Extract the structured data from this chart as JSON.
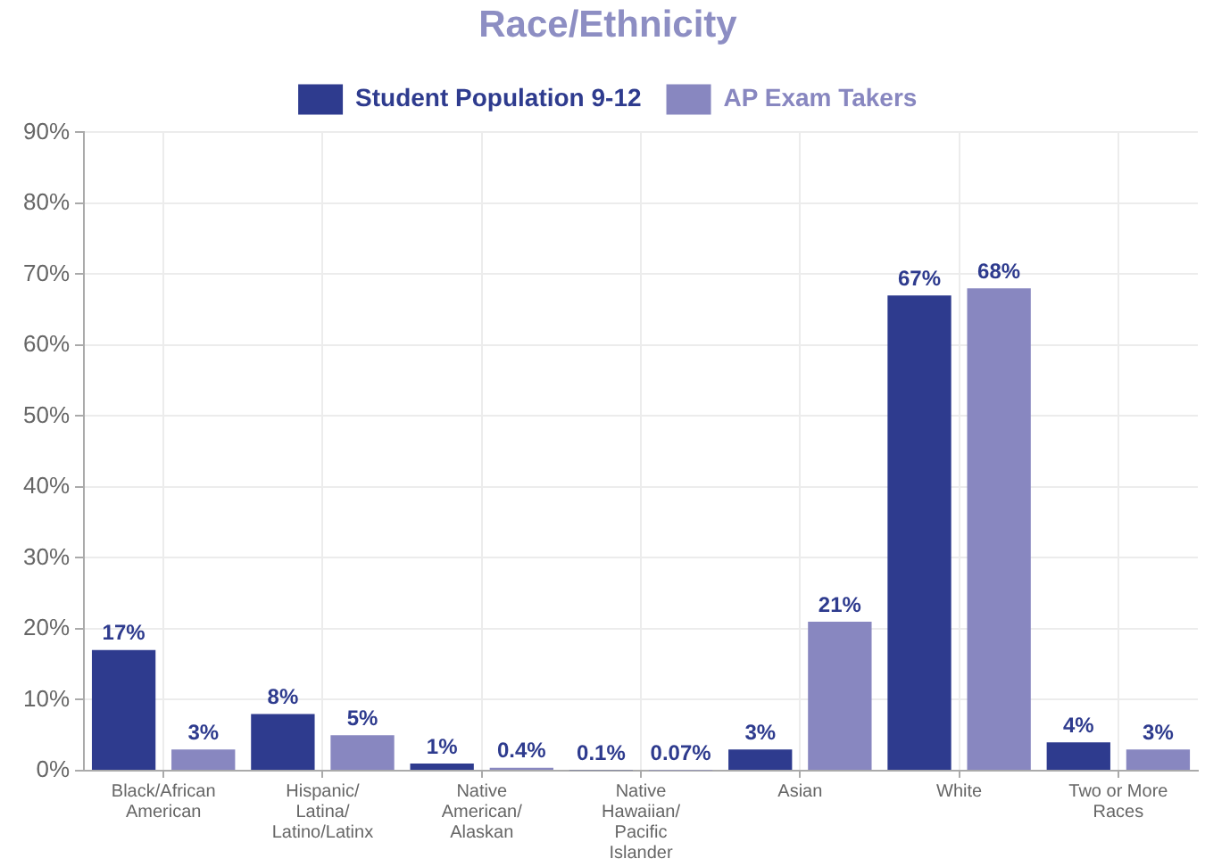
{
  "chart_data": {
    "type": "bar",
    "title": "Race/Ethnicity",
    "categories": [
      "Black/African American",
      "Hispanic/ Latina/ Latino/Latinx",
      "Native American/ Alaskan",
      "Native Hawaiian/ Pacific Islander",
      "Asian",
      "White",
      "Two or More Races"
    ],
    "series": [
      {
        "name": "Student Population 9-12",
        "color": "#2e3b8e",
        "values": [
          17,
          8,
          1,
          0.1,
          3,
          67,
          4
        ],
        "value_labels": [
          "17%",
          "8%",
          "1%",
          "0.1%",
          "3%",
          "67%",
          "4%"
        ]
      },
      {
        "name": "AP Exam Takers",
        "color": "#8887c0",
        "values": [
          3,
          5,
          0.4,
          0.07,
          21,
          68,
          3
        ],
        "value_labels": [
          "3%",
          "5%",
          "0.4%",
          "0.07%",
          "21%",
          "68%",
          "3%"
        ]
      }
    ],
    "ylim": [
      0,
      90
    ],
    "yticks": [
      {
        "value": 0,
        "label": "0%"
      },
      {
        "value": 10,
        "label": "10%"
      },
      {
        "value": 20,
        "label": "20%"
      },
      {
        "value": 30,
        "label": "30%"
      },
      {
        "value": 40,
        "label": "40%"
      },
      {
        "value": 50,
        "label": "50%"
      },
      {
        "value": 60,
        "label": "60%"
      },
      {
        "value": 70,
        "label": "70%"
      },
      {
        "value": 80,
        "label": "80%"
      },
      {
        "value": 90,
        "label": "90%"
      }
    ],
    "grid": true,
    "legend": "top"
  }
}
